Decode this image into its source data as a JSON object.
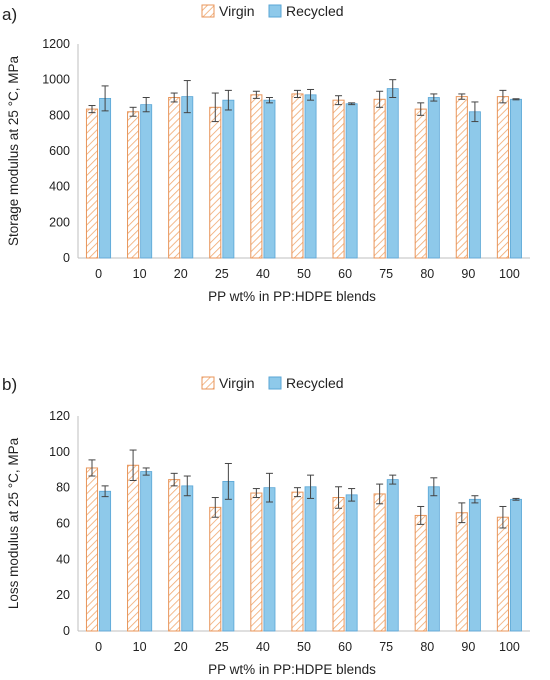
{
  "chart_data": [
    {
      "type": "bar",
      "panel_label": "a)",
      "categories": [
        "0",
        "10",
        "20",
        "25",
        "40",
        "50",
        "60",
        "75",
        "80",
        "90",
        "100"
      ],
      "series": [
        {
          "name": "Virgin",
          "values": [
            835,
            820,
            900,
            845,
            915,
            920,
            885,
            890,
            835,
            905,
            905
          ],
          "error": [
            20,
            25,
            25,
            80,
            20,
            20,
            25,
            45,
            35,
            15,
            35
          ]
        },
        {
          "name": "Recycled",
          "values": [
            895,
            860,
            905,
            885,
            885,
            915,
            865,
            950,
            900,
            820,
            890
          ],
          "error": [
            70,
            40,
            90,
            55,
            15,
            30,
            5,
            50,
            20,
            55,
            3
          ]
        }
      ],
      "xlabel": "PP wt% in PP:HDPE blends",
      "ylabel": "Storage modulus at 25 °C, MPa",
      "ylim": [
        0,
        1200
      ],
      "yticks": [
        "0",
        "200",
        "400",
        "600",
        "800",
        "1000",
        "1200"
      ],
      "legend": "top-center",
      "grid": false
    },
    {
      "type": "bar",
      "panel_label": "b)",
      "categories": [
        "0",
        "10",
        "20",
        "25",
        "40",
        "50",
        "60",
        "75",
        "80",
        "90",
        "100"
      ],
      "series": [
        {
          "name": "Virgin",
          "values": [
            91,
            92.5,
            84.5,
            69,
            77,
            77.5,
            74.5,
            76.5,
            64.5,
            66,
            63.5
          ],
          "error": [
            4.5,
            8.5,
            3.5,
            5.5,
            2.5,
            2.5,
            6,
            5.5,
            5,
            5.5,
            6
          ]
        },
        {
          "name": "Recycled",
          "values": [
            78,
            89,
            81,
            83.5,
            80,
            80.5,
            76,
            84.5,
            80.5,
            73.5,
            73.5
          ],
          "error": [
            3,
            2,
            5.5,
            10,
            8,
            6.5,
            3.5,
            2.5,
            5,
            2,
            0.5
          ]
        }
      ],
      "xlabel": "PP wt% in PP:HDPE blends",
      "ylabel": "Loss modulus at 25 °C, MPa",
      "ylim": [
        0,
        120
      ],
      "yticks": [
        "0",
        "20",
        "40",
        "60",
        "80",
        "100",
        "120"
      ],
      "legend": "top-center",
      "grid": false
    }
  ],
  "colors": {
    "virgin_stroke": "#e8955a",
    "virgin_hatch": "#f0a86f",
    "virgin_fill": "#ffffff",
    "recycled_fill": "#8ec9ea",
    "recycled_stroke": "#5aa6d6",
    "axis": "#bfbfbf",
    "error_bar": "#444444"
  }
}
